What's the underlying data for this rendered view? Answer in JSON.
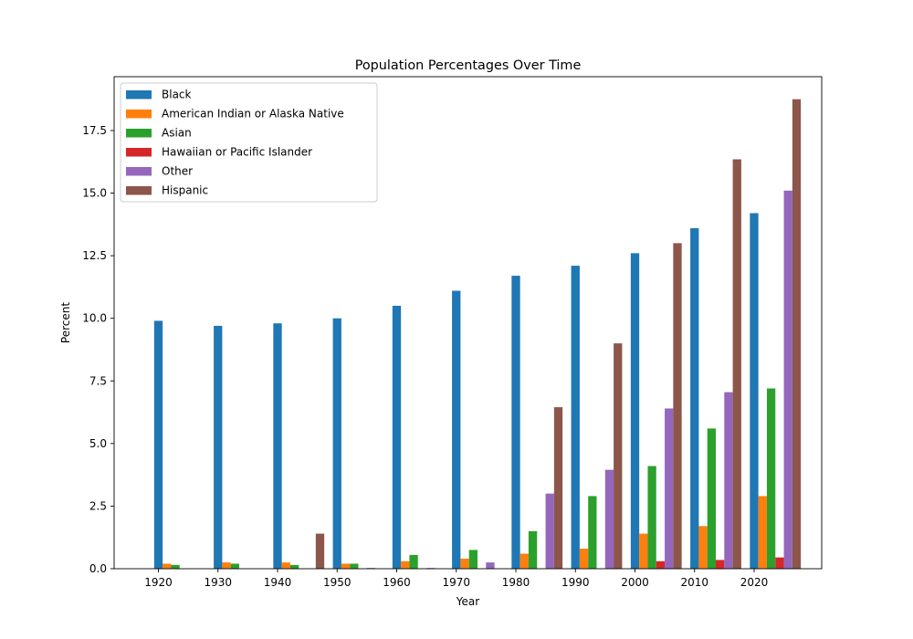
{
  "chart_data": {
    "type": "bar",
    "title": "Population Percentages Over Time",
    "xlabel": "Year",
    "ylabel": "Percent",
    "categories": [
      "1920",
      "1930",
      "1940",
      "1950",
      "1960",
      "1970",
      "1980",
      "1990",
      "2000",
      "2010",
      "2020"
    ],
    "ylim": [
      0,
      19.65
    ],
    "yticks": [
      "0.0",
      "2.5",
      "5.0",
      "7.5",
      "10.0",
      "12.5",
      "15.0",
      "17.5"
    ],
    "grid": false,
    "legend_position": "top-left",
    "series": [
      {
        "name": "Black",
        "color": "#1f77b4",
        "values": [
          9.9,
          9.7,
          9.8,
          10.0,
          10.5,
          11.1,
          11.7,
          12.1,
          12.6,
          13.6,
          14.2
        ]
      },
      {
        "name": "American Indian or Alaska Native",
        "color": "#ff7f0e",
        "values": [
          0.2,
          0.25,
          0.25,
          0.2,
          0.3,
          0.4,
          0.6,
          0.8,
          1.4,
          1.7,
          2.9
        ]
      },
      {
        "name": "Asian",
        "color": "#2ca02c",
        "values": [
          0.15,
          0.2,
          0.15,
          0.2,
          0.55,
          0.75,
          1.5,
          2.9,
          4.1,
          5.6,
          7.2
        ]
      },
      {
        "name": "Hawaiian or Pacific Islander",
        "color": "#d62728",
        "values": [
          0,
          0,
          0,
          0,
          0,
          0,
          0,
          0,
          0.3,
          0.35,
          0.45
        ]
      },
      {
        "name": "Other",
        "color": "#9467bd",
        "values": [
          0,
          0,
          0,
          0.03,
          0.03,
          0.25,
          3.0,
          3.95,
          6.4,
          7.05,
          15.1
        ]
      },
      {
        "name": "Hispanic",
        "color": "#8c564b",
        "values": [
          0,
          0,
          1.4,
          0,
          0,
          0,
          6.45,
          9.0,
          13.0,
          16.35,
          18.75
        ]
      }
    ]
  }
}
